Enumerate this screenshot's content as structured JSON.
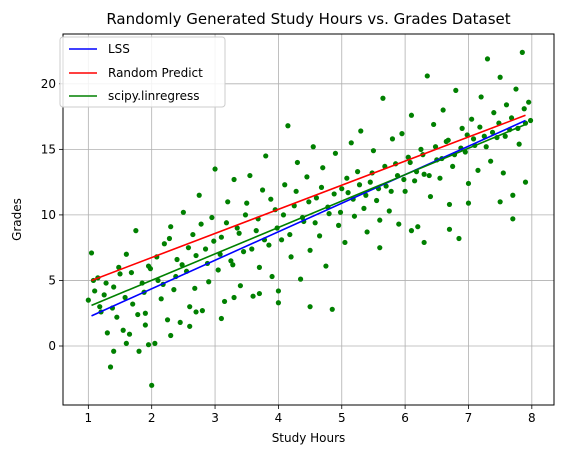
{
  "chart_data": {
    "type": "scatter",
    "title": "Randomly Generated Study Hours vs. Grades Dataset",
    "xlabel": "Study Hours",
    "ylabel": "Grades",
    "xlim": [
      0.6,
      8.35
    ],
    "ylim": [
      -4.5,
      23.8
    ],
    "xticks": [
      1,
      2,
      3,
      4,
      5,
      6,
      7,
      8
    ],
    "yticks": [
      0,
      5,
      10,
      15,
      20
    ],
    "grid": true,
    "legend_position": "top-left",
    "point_color": "#008000",
    "series": [
      {
        "name": "LSS",
        "kind": "line",
        "color": "#0000ff",
        "x": [
          1.05,
          7.9
        ],
        "y": [
          2.3,
          17.2
        ]
      },
      {
        "name": "Random Predict",
        "kind": "line",
        "color": "#ff0000",
        "x": [
          1.05,
          7.9
        ],
        "y": [
          5.0,
          17.6
        ]
      },
      {
        "name": "scipy.linregress",
        "kind": "line",
        "color": "#008000",
        "x": [
          1.05,
          7.9
        ],
        "y": [
          3.1,
          16.9
        ]
      }
    ],
    "points": [
      [
        1.0,
        3.5
      ],
      [
        1.05,
        7.1
      ],
      [
        1.1,
        4.2
      ],
      [
        1.15,
        5.2
      ],
      [
        1.2,
        2.6
      ],
      [
        1.25,
        3.9
      ],
      [
        1.3,
        1.0
      ],
      [
        1.35,
        -1.6
      ],
      [
        1.4,
        4.5
      ],
      [
        1.45,
        2.2
      ],
      [
        1.5,
        5.5
      ],
      [
        1.55,
        1.2
      ],
      [
        1.6,
        7.0
      ],
      [
        1.65,
        0.9
      ],
      [
        1.7,
        3.2
      ],
      [
        1.75,
        8.8
      ],
      [
        1.8,
        -0.4
      ],
      [
        1.85,
        4.8
      ],
      [
        1.9,
        2.5
      ],
      [
        1.95,
        6.1
      ],
      [
        2.0,
        -3.0
      ],
      [
        2.05,
        0.2
      ],
      [
        2.1,
        5.0
      ],
      [
        2.15,
        3.6
      ],
      [
        2.2,
        7.8
      ],
      [
        2.25,
        2.0
      ],
      [
        2.3,
        9.1
      ],
      [
        2.35,
        4.3
      ],
      [
        2.4,
        6.6
      ],
      [
        2.45,
        1.8
      ],
      [
        2.5,
        10.2
      ],
      [
        2.55,
        5.7
      ],
      [
        2.6,
        3.0
      ],
      [
        2.65,
        8.5
      ],
      [
        2.7,
        6.9
      ],
      [
        2.75,
        11.5
      ],
      [
        2.8,
        2.7
      ],
      [
        2.85,
        7.4
      ],
      [
        2.9,
        4.9
      ],
      [
        2.95,
        9.8
      ],
      [
        3.0,
        13.5
      ],
      [
        3.05,
        5.8
      ],
      [
        3.1,
        8.3
      ],
      [
        3.15,
        3.4
      ],
      [
        3.2,
        11.0
      ],
      [
        3.25,
        6.5
      ],
      [
        3.3,
        12.7
      ],
      [
        3.35,
        9.0
      ],
      [
        3.4,
        4.6
      ],
      [
        3.45,
        7.2
      ],
      [
        3.5,
        10.9
      ],
      [
        3.55,
        13.0
      ],
      [
        3.6,
        3.8
      ],
      [
        3.65,
        8.8
      ],
      [
        3.7,
        6.0
      ],
      [
        3.75,
        11.9
      ],
      [
        3.8,
        14.5
      ],
      [
        3.85,
        7.7
      ],
      [
        3.9,
        5.3
      ],
      [
        3.95,
        10.4
      ],
      [
        4.0,
        4.2
      ],
      [
        4.05,
        8.1
      ],
      [
        4.1,
        12.3
      ],
      [
        4.15,
        16.8
      ],
      [
        4.2,
        6.8
      ],
      [
        4.25,
        10.7
      ],
      [
        4.3,
        14.0
      ],
      [
        4.35,
        5.1
      ],
      [
        4.4,
        9.5
      ],
      [
        4.45,
        12.9
      ],
      [
        4.5,
        7.3
      ],
      [
        4.55,
        15.2
      ],
      [
        4.6,
        11.3
      ],
      [
        4.65,
        8.4
      ],
      [
        4.7,
        13.6
      ],
      [
        4.75,
        6.1
      ],
      [
        4.8,
        10.1
      ],
      [
        4.85,
        2.8
      ],
      [
        4.9,
        14.7
      ],
      [
        4.95,
        9.2
      ],
      [
        5.0,
        12.0
      ],
      [
        5.05,
        7.9
      ],
      [
        5.1,
        11.7
      ],
      [
        5.15,
        15.5
      ],
      [
        5.2,
        9.9
      ],
      [
        5.25,
        13.3
      ],
      [
        5.3,
        16.4
      ],
      [
        5.35,
        10.5
      ],
      [
        5.4,
        8.7
      ],
      [
        5.45,
        12.5
      ],
      [
        5.5,
        14.9
      ],
      [
        5.55,
        11.1
      ],
      [
        5.6,
        9.6
      ],
      [
        5.65,
        18.9
      ],
      [
        5.7,
        12.2
      ],
      [
        5.75,
        10.3
      ],
      [
        5.8,
        15.8
      ],
      [
        5.85,
        13.9
      ],
      [
        5.9,
        9.3
      ],
      [
        5.95,
        16.2
      ],
      [
        6.0,
        11.8
      ],
      [
        6.05,
        14.4
      ],
      [
        6.1,
        17.6
      ],
      [
        6.15,
        12.6
      ],
      [
        6.2,
        9.1
      ],
      [
        6.25,
        15.0
      ],
      [
        6.3,
        13.1
      ],
      [
        6.35,
        20.6
      ],
      [
        6.4,
        11.4
      ],
      [
        6.45,
        16.9
      ],
      [
        6.5,
        14.2
      ],
      [
        6.55,
        12.8
      ],
      [
        6.6,
        18.0
      ],
      [
        6.65,
        15.6
      ],
      [
        6.7,
        10.8
      ],
      [
        6.75,
        13.7
      ],
      [
        6.8,
        19.5
      ],
      [
        6.85,
        8.2
      ],
      [
        6.9,
        16.6
      ],
      [
        6.95,
        14.8
      ],
      [
        7.0,
        12.4
      ],
      [
        7.05,
        17.3
      ],
      [
        7.1,
        15.3
      ],
      [
        7.15,
        13.4
      ],
      [
        7.2,
        19.0
      ],
      [
        7.25,
        16.0
      ],
      [
        7.3,
        21.9
      ],
      [
        7.35,
        14.1
      ],
      [
        7.4,
        17.8
      ],
      [
        7.45,
        15.9
      ],
      [
        7.5,
        20.5
      ],
      [
        7.55,
        13.2
      ],
      [
        7.6,
        18.4
      ],
      [
        7.65,
        16.5
      ],
      [
        7.7,
        9.7
      ],
      [
        7.75,
        19.6
      ],
      [
        7.8,
        15.4
      ],
      [
        7.85,
        22.4
      ],
      [
        7.9,
        17.0
      ],
      [
        7.95,
        18.6
      ],
      [
        1.08,
        5.0
      ],
      [
        1.18,
        3.0
      ],
      [
        1.28,
        4.8
      ],
      [
        1.38,
        2.9
      ],
      [
        1.48,
        6.0
      ],
      [
        1.58,
        3.7
      ],
      [
        1.68,
        5.6
      ],
      [
        1.78,
        2.4
      ],
      [
        1.88,
        4.1
      ],
      [
        1.98,
        5.9
      ],
      [
        2.08,
        6.8
      ],
      [
        2.18,
        4.7
      ],
      [
        2.28,
        8.2
      ],
      [
        2.38,
        5.3
      ],
      [
        2.48,
        6.2
      ],
      [
        2.58,
        7.5
      ],
      [
        2.68,
        4.4
      ],
      [
        2.78,
        9.3
      ],
      [
        2.88,
        6.3
      ],
      [
        2.98,
        8.0
      ],
      [
        3.08,
        7.0
      ],
      [
        3.18,
        9.4
      ],
      [
        3.28,
        6.2
      ],
      [
        3.38,
        8.6
      ],
      [
        3.48,
        10.0
      ],
      [
        3.58,
        7.4
      ],
      [
        3.68,
        9.7
      ],
      [
        3.78,
        8.1
      ],
      [
        3.88,
        11.2
      ],
      [
        3.98,
        9.0
      ],
      [
        4.08,
        10.0
      ],
      [
        4.18,
        8.5
      ],
      [
        4.28,
        11.8
      ],
      [
        4.38,
        9.8
      ],
      [
        4.48,
        11.0
      ],
      [
        4.58,
        9.4
      ],
      [
        4.68,
        12.1
      ],
      [
        4.78,
        10.6
      ],
      [
        4.88,
        11.6
      ],
      [
        4.98,
        10.2
      ],
      [
        5.08,
        12.8
      ],
      [
        5.18,
        11.2
      ],
      [
        5.28,
        12.3
      ],
      [
        5.38,
        11.5
      ],
      [
        5.48,
        13.2
      ],
      [
        5.58,
        12.0
      ],
      [
        5.68,
        13.7
      ],
      [
        5.78,
        11.8
      ],
      [
        5.88,
        13.0
      ],
      [
        5.98,
        12.7
      ],
      [
        6.08,
        14.0
      ],
      [
        6.18,
        13.3
      ],
      [
        6.28,
        14.6
      ],
      [
        6.38,
        13.0
      ],
      [
        6.48,
        15.2
      ],
      [
        6.58,
        14.3
      ],
      [
        6.68,
        15.7
      ],
      [
        6.78,
        14.6
      ],
      [
        6.88,
        15.1
      ],
      [
        6.98,
        16.1
      ],
      [
        7.08,
        15.8
      ],
      [
        7.18,
        16.7
      ],
      [
        7.28,
        15.2
      ],
      [
        7.38,
        16.3
      ],
      [
        7.48,
        17.0
      ],
      [
        7.58,
        16.0
      ],
      [
        7.68,
        17.4
      ],
      [
        7.78,
        16.6
      ],
      [
        7.88,
        18.1
      ],
      [
        7.98,
        17.2
      ],
      [
        1.6,
        0.2
      ],
      [
        1.95,
        0.1
      ],
      [
        2.3,
        0.8
      ],
      [
        2.6,
        1.5
      ],
      [
        3.3,
        3.7
      ],
      [
        3.7,
        4.0
      ],
      [
        4.5,
        3.0
      ],
      [
        5.6,
        7.5
      ],
      [
        6.1,
        8.8
      ],
      [
        6.3,
        7.9
      ],
      [
        7.7,
        11.5
      ],
      [
        7.5,
        11.0
      ],
      [
        7.0,
        10.9
      ],
      [
        1.4,
        -0.4
      ],
      [
        1.9,
        1.6
      ],
      [
        2.7,
        2.6
      ],
      [
        3.1,
        2.1
      ],
      [
        6.7,
        8.9
      ],
      [
        7.9,
        12.5
      ],
      [
        4.0,
        3.3
      ]
    ]
  }
}
